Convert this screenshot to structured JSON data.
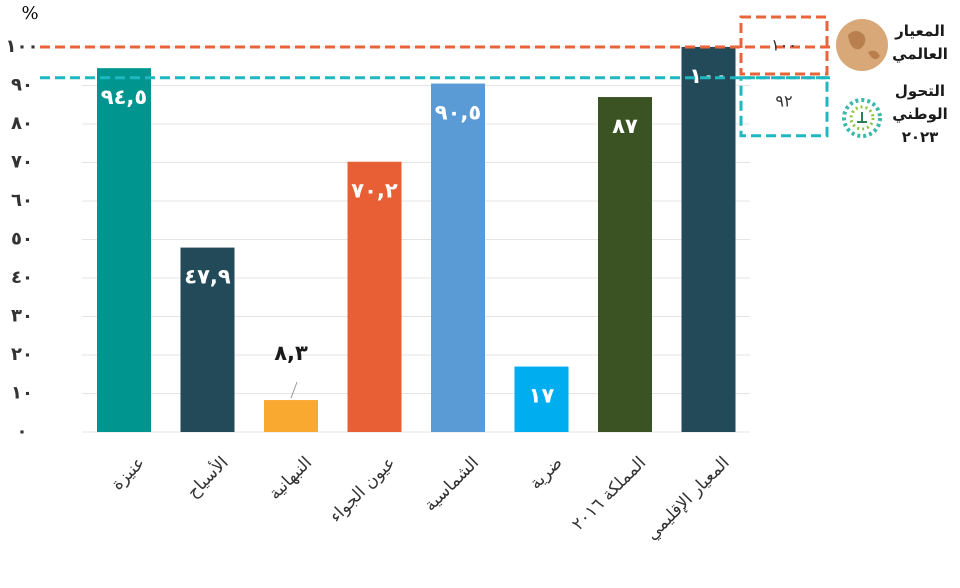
{
  "chart_data": {
    "type": "bar",
    "y_label": "%",
    "categories": [
      "عنيزة",
      "الأسياح",
      "النبهانية",
      "عيون الجواء",
      "الشماسية",
      "ضرية",
      "المملكة ٢٠١٦",
      "المعيار الإقليمي"
    ],
    "values": [
      94.5,
      47.9,
      8.3,
      70.2,
      90.5,
      17,
      87,
      100
    ],
    "value_labels": [
      "٩٤,٥",
      "٤٧,٩",
      "٨,٣",
      "٧٠,٢",
      "٩٠,٥",
      "١٧",
      "٨٧",
      "١٠٠"
    ],
    "colors": [
      "#00968f",
      "#234a59",
      "#f9a930",
      "#e85f35",
      "#5b9bd5",
      "#00aeef",
      "#3b5323",
      "#234a59"
    ],
    "ylim": [
      0,
      100
    ],
    "yticks": [
      {
        "value": 0,
        "label": "٠"
      },
      {
        "value": 10,
        "label": "١٠"
      },
      {
        "value": 20,
        "label": "٢٠"
      },
      {
        "value": 30,
        "label": "٣٠"
      },
      {
        "value": 40,
        "label": "٤٠"
      },
      {
        "value": 50,
        "label": "٥٠"
      },
      {
        "value": 60,
        "label": "٦٠"
      },
      {
        "value": 70,
        "label": "٧٠"
      },
      {
        "value": 80,
        "label": "٨٠"
      },
      {
        "value": 90,
        "label": "٩٠"
      },
      {
        "value": 100,
        "label": "١٠٠"
      }
    ],
    "grid": true,
    "reference_lines": [
      {
        "name": "المعيار العالمي",
        "value": 100,
        "value_label": "١٠٠",
        "color": "#e8643a"
      },
      {
        "name": "التحول الوطني ٢٠٢٣",
        "value": 92,
        "value_label": "٩٢",
        "color": "#1fb8c1"
      }
    ]
  }
}
